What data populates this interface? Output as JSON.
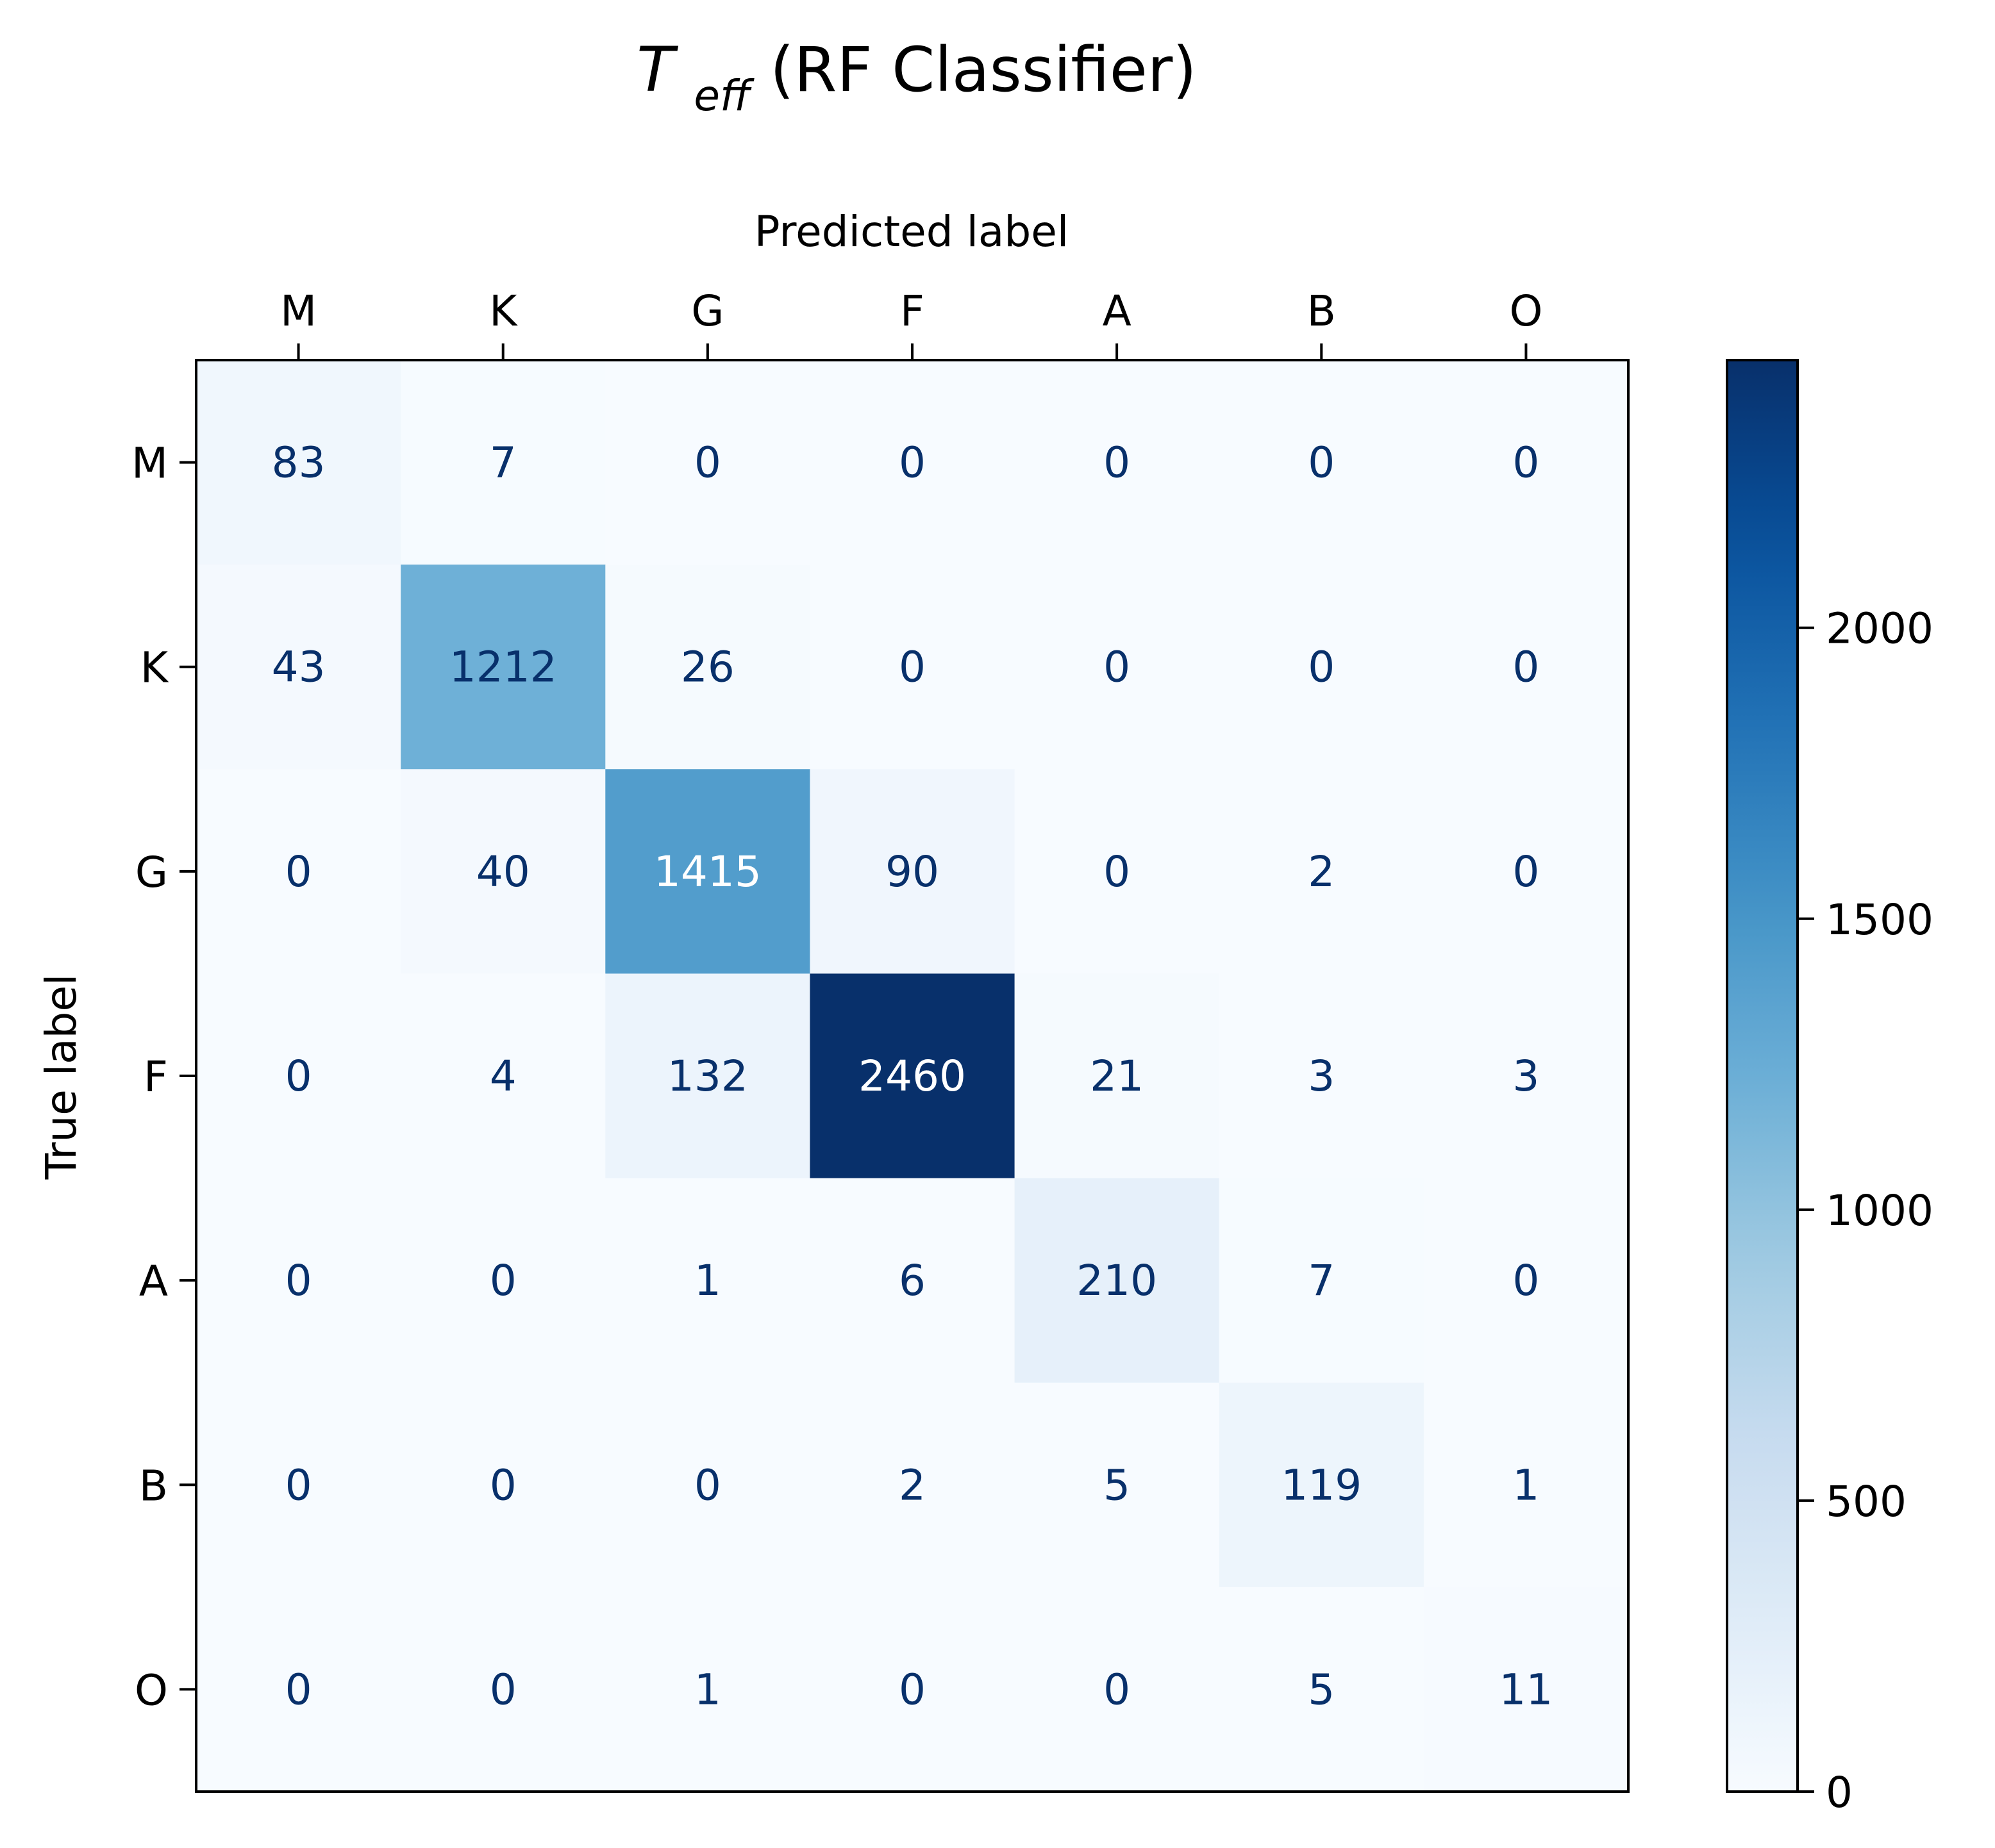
{
  "chart_data": {
    "type": "heatmap",
    "title": "T",
    "title_subscript": "eff",
    "title_suffix": " (RF Classifier)",
    "xlabel": "Predicted label",
    "ylabel": "True label",
    "x_categories": [
      "M",
      "K",
      "G",
      "F",
      "A",
      "B",
      "O"
    ],
    "y_categories": [
      "M",
      "K",
      "G",
      "F",
      "A",
      "B",
      "O"
    ],
    "values": [
      [
        83,
        7,
        0,
        0,
        0,
        0,
        0
      ],
      [
        43,
        1212,
        26,
        0,
        0,
        0,
        0
      ],
      [
        0,
        40,
        1415,
        90,
        0,
        2,
        0
      ],
      [
        0,
        4,
        132,
        2460,
        21,
        3,
        3
      ],
      [
        0,
        0,
        1,
        6,
        210,
        7,
        0
      ],
      [
        0,
        0,
        0,
        2,
        5,
        119,
        1
      ],
      [
        0,
        0,
        1,
        0,
        0,
        5,
        11
      ]
    ],
    "colormap": "Blues",
    "colorbar": {
      "range": [
        0,
        2460
      ],
      "ticks": [
        0,
        500,
        1000,
        1500,
        2000
      ]
    },
    "text_color_dark": "#08306b",
    "text_color_light": "#ffffff",
    "x_axis_position": "top"
  }
}
